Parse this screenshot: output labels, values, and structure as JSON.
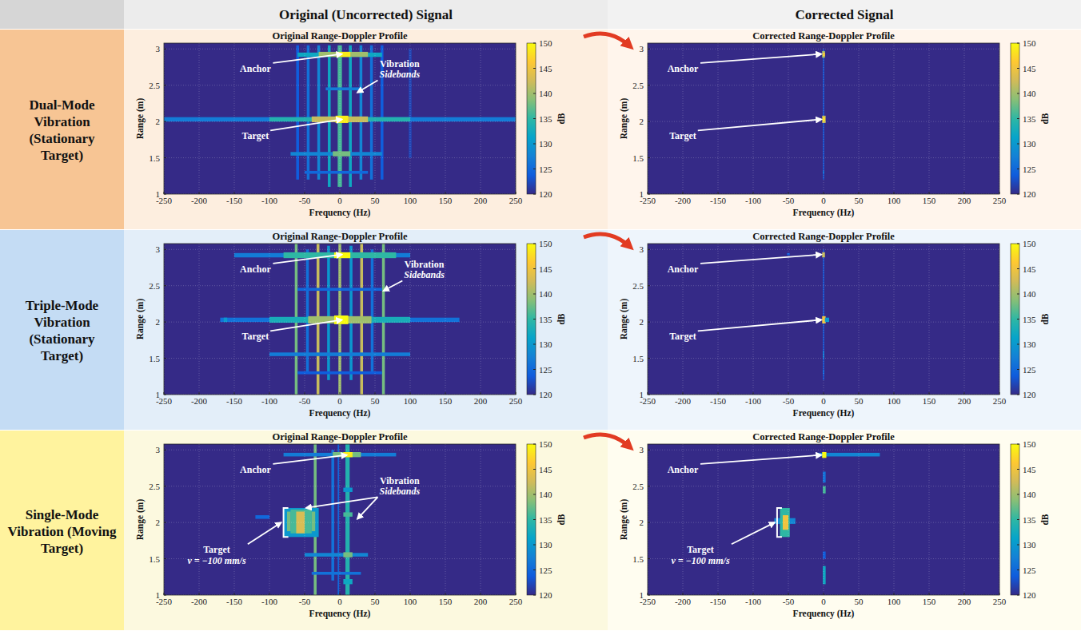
{
  "figure": {
    "column_titles": [
      "Original (Uncorrected) Signal",
      "Corrected Signal"
    ],
    "row_labels": [
      "Dual-Mode Vibration (Stationary Target)",
      "Triple-Mode Vibration (Stationary Target)",
      "Single-Mode Vibration (Moving Target)"
    ]
  },
  "chart_data": [
    {
      "type": "heatmap",
      "title": "Original Range-Doppler Profile",
      "x_label": "Frequency (Hz)",
      "y_label": "Range (m)",
      "xlim": [
        -250,
        250
      ],
      "xticks": [
        -250,
        -200,
        -150,
        -100,
        -50,
        0,
        50,
        100,
        150,
        200,
        250
      ],
      "ylim": [
        1,
        3.08
      ],
      "yticks": [
        1,
        1.5,
        2,
        2.5,
        3
      ],
      "grid": true,
      "colorbar": {
        "range": [
          120,
          150
        ],
        "ticks": [
          120,
          125,
          130,
          135,
          140,
          145,
          150
        ],
        "label": "dB"
      },
      "cells": [
        [
          -62,
          -58,
          1.2,
          3.05,
          124
        ],
        [
          -47,
          -43,
          1.2,
          3.05,
          126
        ],
        [
          -32,
          -28,
          1.2,
          3.05,
          128
        ],
        [
          -17,
          -13,
          1.1,
          3.05,
          132
        ],
        [
          -3,
          3,
          1.1,
          3.05,
          136
        ],
        [
          13,
          17,
          1.1,
          3.05,
          132
        ],
        [
          28,
          32,
          1.2,
          3.05,
          128
        ],
        [
          43,
          47,
          1.2,
          3.05,
          126
        ],
        [
          58,
          62,
          1.2,
          3.05,
          124
        ],
        [
          98,
          102,
          1.5,
          3.0,
          122
        ],
        [
          -250,
          250,
          2.0,
          2.06,
          127
        ],
        [
          -100,
          100,
          2.0,
          2.06,
          134
        ],
        [
          -40,
          40,
          1.99,
          2.07,
          142
        ],
        [
          -6,
          12,
          1.98,
          2.08,
          149
        ],
        [
          -60,
          60,
          2.89,
          2.95,
          132
        ],
        [
          -30,
          40,
          2.89,
          2.96,
          140
        ],
        [
          -5,
          15,
          2.89,
          2.96,
          149
        ],
        [
          -70,
          60,
          1.53,
          1.58,
          128
        ],
        [
          -10,
          15,
          1.52,
          1.59,
          138
        ],
        [
          -50,
          40,
          1.28,
          1.32,
          125
        ],
        [
          -20,
          30,
          2.43,
          2.47,
          127
        ]
      ],
      "annotations": [
        {
          "text": [
            "Anchor"
          ],
          "text_x": -120,
          "text_y": 2.73,
          "points": [
            [
              3,
              2.93
            ]
          ]
        },
        {
          "text": [
            "Vibration",
            "Sidebands"
          ],
          "text_x": 85,
          "text_y": 2.72,
          "points": [
            [
              25,
              2.4
            ]
          ]
        },
        {
          "text": [
            "Target"
          ],
          "text_x": -120,
          "text_y": 1.8,
          "points": [
            [
              3,
              2.03
            ]
          ]
        }
      ]
    },
    {
      "type": "heatmap",
      "title": "Corrected Range-Doppler Profile",
      "x_label": "Frequency (Hz)",
      "y_label": "Range (m)",
      "xlim": [
        -250,
        250
      ],
      "xticks": [
        -250,
        -200,
        -150,
        -100,
        -50,
        0,
        50,
        100,
        150,
        200,
        250
      ],
      "ylim": [
        1,
        3.08
      ],
      "yticks": [
        1,
        1.5,
        2,
        2.5,
        3
      ],
      "grid": true,
      "colorbar": {
        "range": [
          120,
          150
        ],
        "ticks": [
          120,
          125,
          130,
          135,
          140,
          145,
          150
        ],
        "label": "dB"
      },
      "cells": [
        [
          -1,
          1,
          1.2,
          3.0,
          123
        ],
        [
          -2,
          2,
          2.88,
          2.97,
          140
        ],
        [
          -2,
          3,
          1.98,
          2.08,
          142
        ],
        [
          -1,
          2,
          2.0,
          2.06,
          148
        ],
        [
          -1,
          2,
          2.9,
          2.95,
          146
        ],
        [
          -1,
          1,
          1.28,
          1.32,
          126
        ]
      ],
      "annotations": [
        {
          "text": [
            "Anchor"
          ],
          "text_x": -200,
          "text_y": 2.73,
          "points": [
            [
              -3,
              2.93
            ]
          ]
        },
        {
          "text": [
            "Target"
          ],
          "text_x": -200,
          "text_y": 1.8,
          "points": [
            [
              -3,
              2.03
            ]
          ]
        }
      ]
    },
    {
      "type": "heatmap",
      "title": "Original Range-Doppler Profile",
      "x_label": "Frequency (Hz)",
      "y_label": "Range (m)",
      "xlim": [
        -250,
        250
      ],
      "xticks": [
        -250,
        -200,
        -150,
        -100,
        -50,
        0,
        50,
        100,
        150,
        200,
        250
      ],
      "ylim": [
        1,
        3.08
      ],
      "yticks": [
        1,
        1.5,
        2,
        2.5,
        3
      ],
      "grid": true,
      "colorbar": {
        "range": [
          120,
          150
        ],
        "ticks": [
          120,
          125,
          130,
          135,
          140,
          145,
          150
        ],
        "label": "dB"
      },
      "cells": [
        [
          -48,
          -44,
          1.3,
          3.0,
          126
        ],
        [
          44,
          48,
          1.3,
          3.0,
          126
        ],
        [
          -18,
          -14,
          1.2,
          3.05,
          130
        ],
        [
          14,
          18,
          1.2,
          3.05,
          130
        ],
        [
          -64,
          -60,
          1.0,
          3.08,
          138
        ],
        [
          -33,
          -29,
          1.0,
          3.08,
          142
        ],
        [
          -2,
          2,
          1.0,
          3.08,
          140
        ],
        [
          29,
          33,
          1.0,
          3.08,
          142
        ],
        [
          60,
          64,
          1.0,
          3.08,
          138
        ],
        [
          -170,
          170,
          2.0,
          2.06,
          126
        ],
        [
          -100,
          100,
          1.99,
          2.07,
          133
        ],
        [
          -45,
          45,
          1.98,
          2.08,
          140
        ],
        [
          -8,
          12,
          1.97,
          2.09,
          150
        ],
        [
          -150,
          100,
          2.89,
          2.95,
          127
        ],
        [
          -80,
          80,
          2.88,
          2.96,
          135
        ],
        [
          -8,
          15,
          2.88,
          2.96,
          150
        ],
        [
          -100,
          100,
          1.53,
          1.58,
          127
        ],
        [
          -60,
          60,
          1.28,
          1.32,
          124
        ],
        [
          -60,
          60,
          2.43,
          2.47,
          125
        ],
        [
          -165,
          -160,
          2.0,
          2.06,
          130
        ]
      ],
      "annotations": [
        {
          "text": [
            "Anchor"
          ],
          "text_x": -120,
          "text_y": 2.73,
          "points": [
            [
              3,
              2.93
            ]
          ]
        },
        {
          "text": [
            "Vibration",
            "Sidebands"
          ],
          "text_x": 120,
          "text_y": 2.72,
          "points": [
            [
              62,
              2.43
            ]
          ]
        },
        {
          "text": [
            "Target"
          ],
          "text_x": -120,
          "text_y": 1.8,
          "points": [
            [
              3,
              2.03
            ]
          ]
        }
      ]
    },
    {
      "type": "heatmap",
      "title": "Corrected Range-Doppler Profile",
      "x_label": "Frequency (Hz)",
      "y_label": "Range (m)",
      "xlim": [
        -250,
        250
      ],
      "xticks": [
        -250,
        -200,
        -150,
        -100,
        -50,
        0,
        50,
        100,
        150,
        200,
        250
      ],
      "ylim": [
        1,
        3.08
      ],
      "yticks": [
        1,
        1.5,
        2,
        2.5,
        3
      ],
      "grid": true,
      "colorbar": {
        "range": [
          120,
          150
        ],
        "ticks": [
          120,
          125,
          130,
          135,
          140,
          145,
          150
        ],
        "label": "dB"
      },
      "cells": [
        [
          -1,
          1,
          1.2,
          3.0,
          123
        ],
        [
          -2,
          2,
          2.89,
          2.96,
          142
        ],
        [
          -2,
          3,
          1.98,
          2.08,
          145
        ],
        [
          2,
          8,
          2.0,
          2.06,
          130
        ],
        [
          -52,
          -48,
          2.92,
          2.95,
          124
        ],
        [
          -1,
          1,
          1.5,
          1.6,
          127
        ],
        [
          -1,
          1,
          1.28,
          1.34,
          125
        ]
      ],
      "annotations": [
        {
          "text": [
            "Anchor"
          ],
          "text_x": -200,
          "text_y": 2.73,
          "points": [
            [
              -3,
              2.93
            ]
          ]
        },
        {
          "text": [
            "Target"
          ],
          "text_x": -200,
          "text_y": 1.8,
          "points": [
            [
              -3,
              2.03
            ]
          ]
        }
      ]
    },
    {
      "type": "heatmap",
      "title": "Original Range-Doppler Profile",
      "x_label": "Frequency (Hz)",
      "y_label": "Range (m)",
      "xlim": [
        -250,
        250
      ],
      "xticks": [
        -250,
        -200,
        -150,
        -100,
        -50,
        0,
        50,
        100,
        150,
        200,
        250
      ],
      "ylim": [
        1,
        3.08
      ],
      "yticks": [
        1,
        1.5,
        2,
        2.5,
        3
      ],
      "grid": true,
      "colorbar": {
        "range": [
          120,
          150
        ],
        "ticks": [
          120,
          125,
          130,
          135,
          140,
          145,
          150
        ],
        "label": "dB"
      },
      "cells": [
        [
          -12,
          -8,
          1.2,
          3.0,
          126
        ],
        [
          -3,
          -1,
          1.0,
          3.08,
          125
        ],
        [
          -37,
          -33,
          1.0,
          3.08,
          138
        ],
        [
          8,
          14,
          1.0,
          3.08,
          134
        ],
        [
          -80,
          -30,
          1.8,
          2.2,
          130
        ],
        [
          -70,
          -40,
          1.85,
          2.18,
          136
        ],
        [
          -62,
          -50,
          1.85,
          2.15,
          143
        ],
        [
          -75,
          -70,
          1.88,
          2.15,
          138
        ],
        [
          -40,
          -35,
          1.88,
          2.15,
          138
        ],
        [
          -80,
          80,
          2.91,
          2.96,
          127
        ],
        [
          -10,
          30,
          2.9,
          2.97,
          138
        ],
        [
          5,
          18,
          2.9,
          2.97,
          149
        ],
        [
          -50,
          40,
          1.53,
          1.58,
          128
        ],
        [
          5,
          18,
          1.52,
          1.59,
          138
        ],
        [
          -40,
          30,
          1.28,
          1.32,
          126
        ],
        [
          5,
          18,
          2.08,
          2.14,
          136
        ],
        [
          5,
          18,
          1.15,
          1.22,
          132
        ],
        [
          -120,
          -100,
          2.05,
          2.1,
          125
        ],
        [
          5,
          18,
          2.42,
          2.48,
          130
        ]
      ],
      "annotations": [
        {
          "text": [
            "Anchor"
          ],
          "text_x": -120,
          "text_y": 2.73,
          "points": [
            [
              10,
              2.93
            ]
          ]
        },
        {
          "text": [
            "Vibration",
            "Sidebands"
          ],
          "text_x": 85,
          "text_y": 2.5,
          "points": [
            [
              -48,
              2.2
            ],
            [
              25,
              2.05
            ]
          ]
        },
        {
          "text": [
            "Target",
            "v = −100 mm/s"
          ],
          "text_x": -175,
          "text_y": 1.55,
          "points": [
            [
              -80,
              2.0
            ]
          ],
          "bracket": [
            1.8,
            2.2
          ]
        }
      ]
    },
    {
      "type": "heatmap",
      "title": "Corrected Range-Doppler Profile",
      "x_label": "Frequency (Hz)",
      "y_label": "Range (m)",
      "xlim": [
        -250,
        250
      ],
      "xticks": [
        -250,
        -200,
        -150,
        -100,
        -50,
        0,
        50,
        100,
        150,
        200,
        250
      ],
      "ylim": [
        1,
        3.08
      ],
      "yticks": [
        1,
        1.5,
        2,
        2.5,
        3
      ],
      "grid": true,
      "colorbar": {
        "range": [
          120,
          150
        ],
        "ticks": [
          120,
          125,
          130,
          135,
          140,
          145,
          150
        ],
        "label": "dB"
      },
      "cells": [
        [
          -70,
          -40,
          1.98,
          2.06,
          128
        ],
        [
          -62,
          -48,
          1.8,
          2.2,
          135
        ],
        [
          -58,
          -50,
          1.9,
          2.1,
          145
        ],
        [
          -10,
          80,
          2.91,
          2.96,
          128
        ],
        [
          -2,
          4,
          2.89,
          2.97,
          150
        ],
        [
          -1,
          3,
          2.4,
          2.5,
          136
        ],
        [
          -1,
          3,
          2.55,
          2.7,
          126
        ],
        [
          -1,
          3,
          1.15,
          1.4,
          132
        ],
        [
          -1,
          3,
          1.5,
          1.6,
          124
        ]
      ],
      "annotations": [
        {
          "text": [
            "Anchor"
          ],
          "text_x": -200,
          "text_y": 2.73,
          "points": [
            [
              -3,
              2.93
            ]
          ]
        },
        {
          "text": [
            "Target",
            "v = −100 mm/s"
          ],
          "text_x": -175,
          "text_y": 1.55,
          "points": [
            [
              -66,
              2.0
            ]
          ],
          "bracket": [
            1.8,
            2.2
          ]
        }
      ]
    }
  ]
}
